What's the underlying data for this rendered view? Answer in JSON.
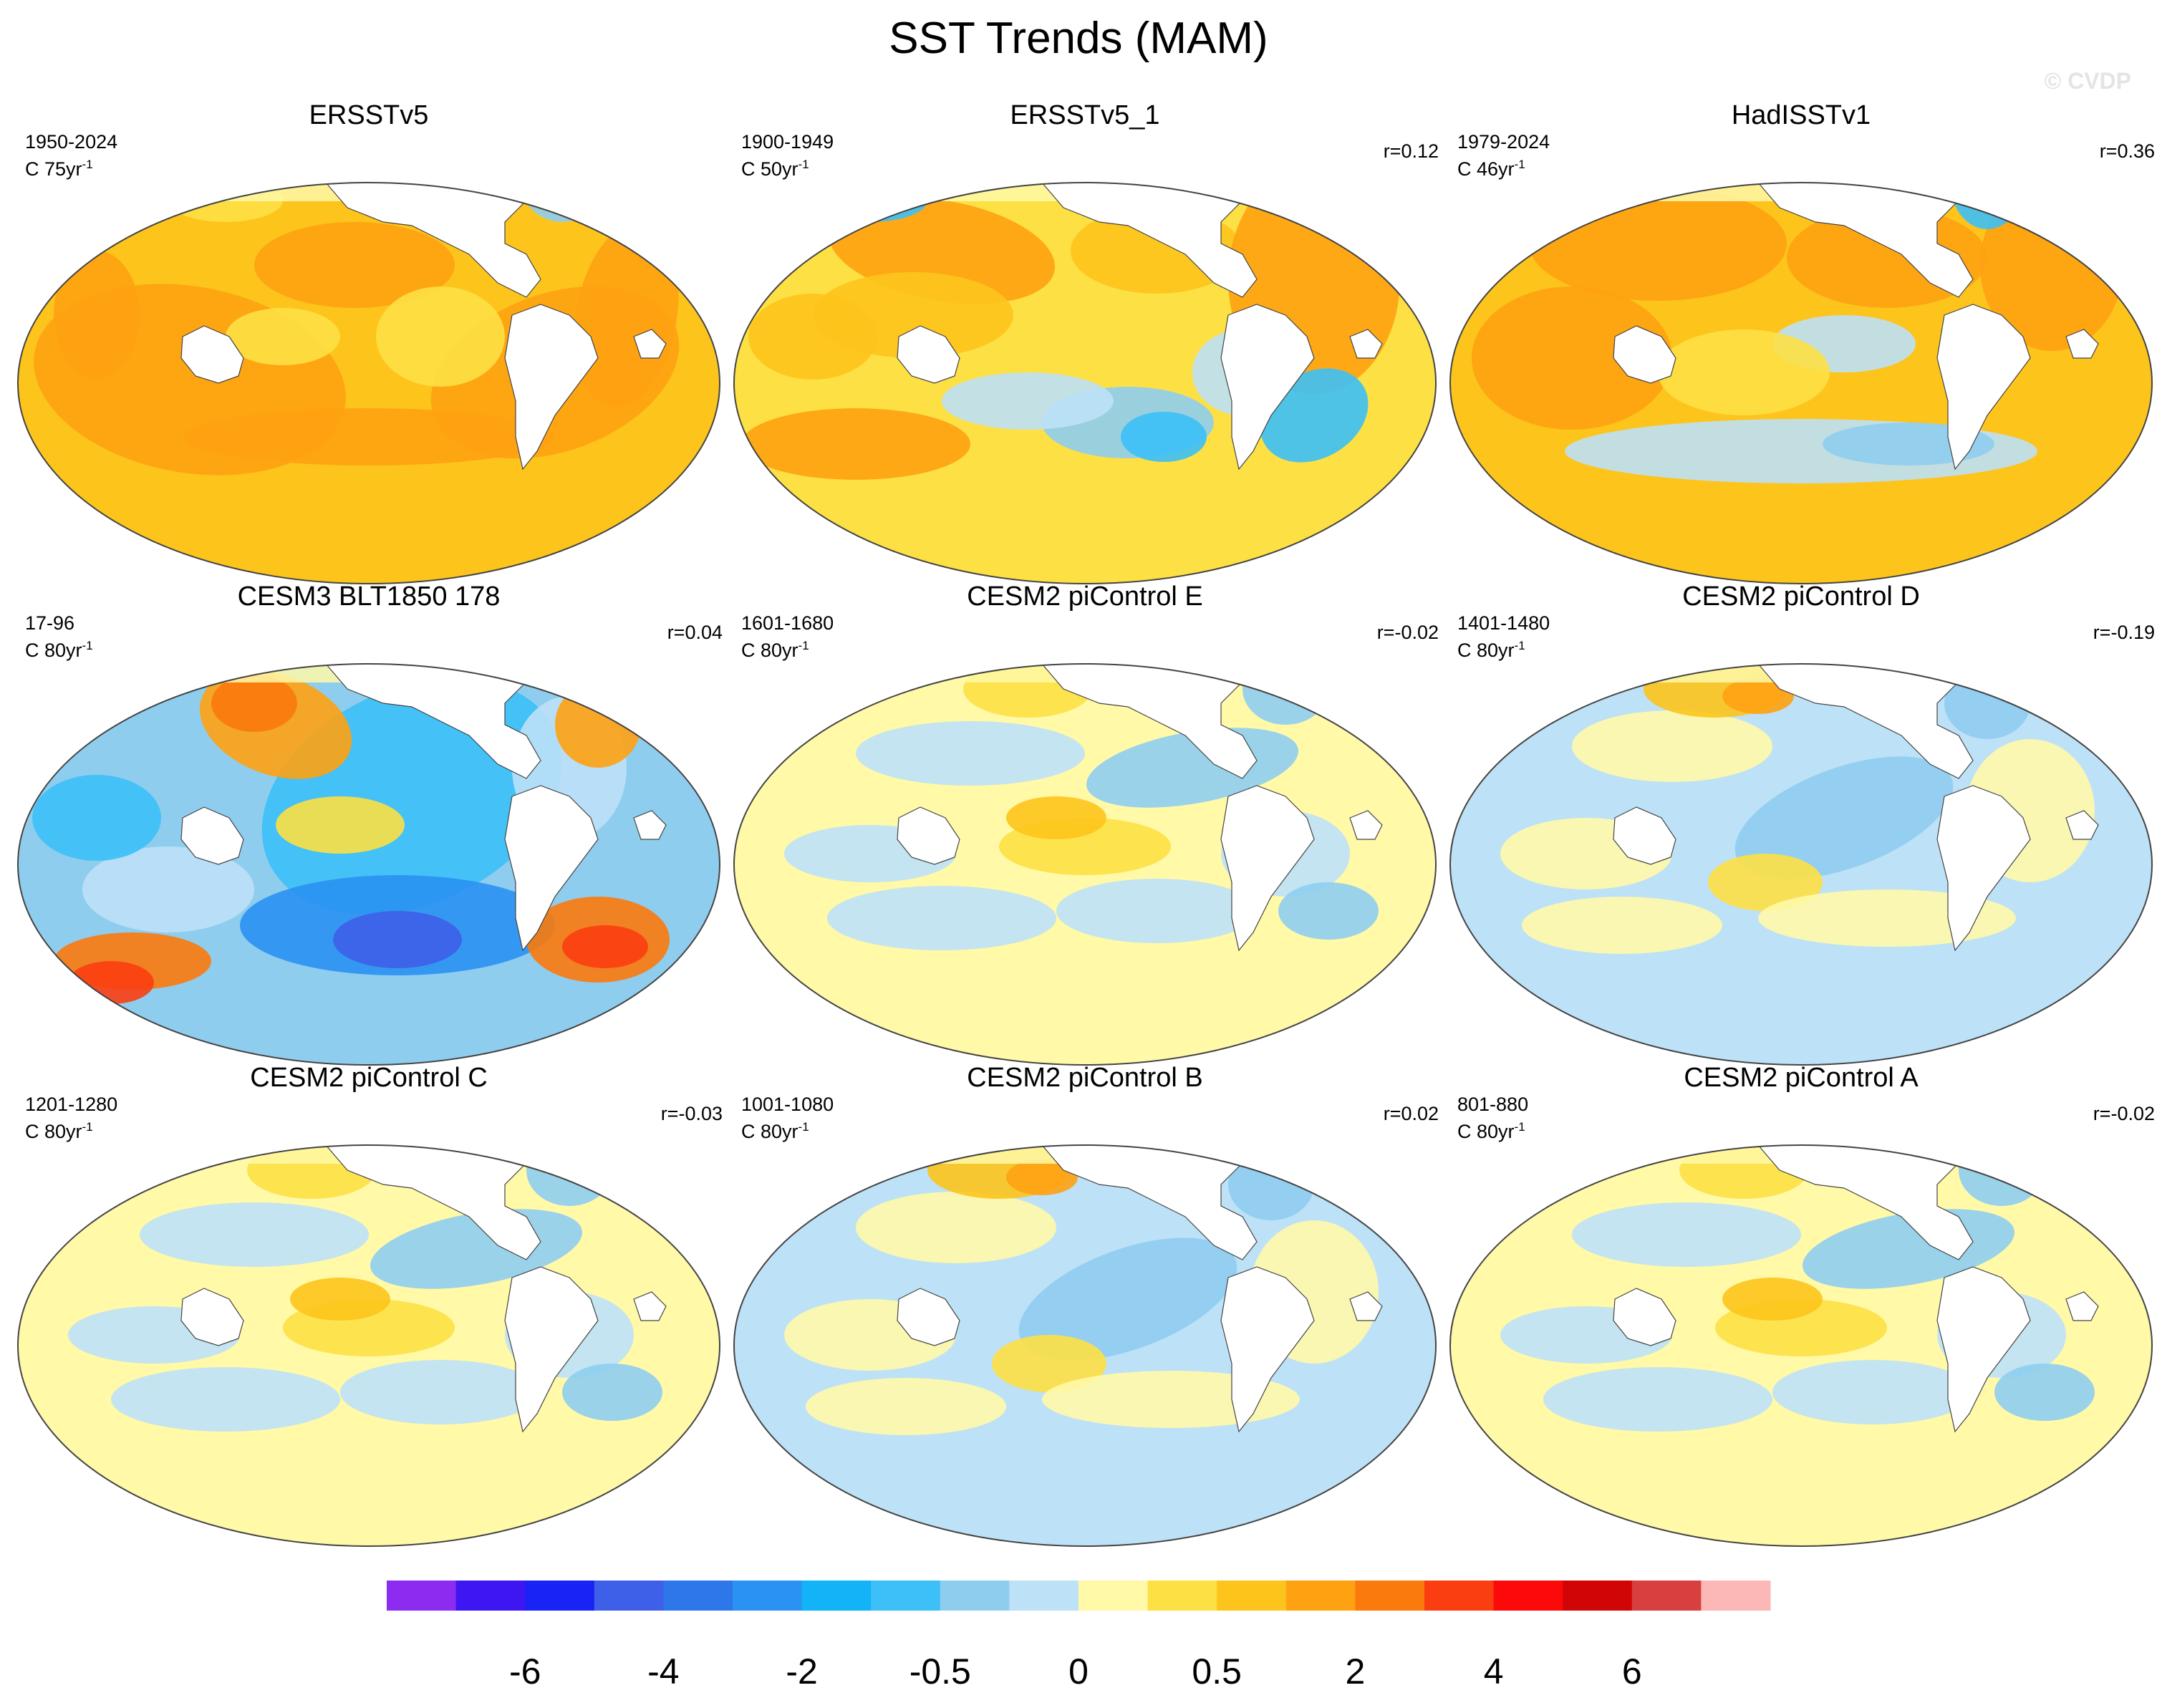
{
  "title": "SST Trends (MAM)",
  "watermark": "© CVDP",
  "panels": [
    {
      "title": "ERSSTv5",
      "period": "1950-2024",
      "units_base": "C 75yr",
      "units_exp": "-1",
      "corr": "",
      "pattern": "warm_strong"
    },
    {
      "title": "ERSSTv5_1",
      "period": "1900-1949",
      "units_base": "C 50yr",
      "units_exp": "-1",
      "corr": "r=0.12",
      "pattern": "warm_mixed"
    },
    {
      "title": "HadISSTv1",
      "period": "1979-2024",
      "units_base": "C 46yr",
      "units_exp": "-1",
      "corr": "r=0.36",
      "pattern": "warm_strong_sthcool"
    },
    {
      "title": "CESM3 BLT1850 178",
      "period": "17-96",
      "units_base": "C 80yr",
      "units_exp": "-1",
      "corr": "r=0.04",
      "pattern": "cool_strong"
    },
    {
      "title": "CESM2 piControl E",
      "period": "1601-1680",
      "units_base": "C 80yr",
      "units_exp": "-1",
      "corr": "r=-0.02",
      "pattern": "mixed"
    },
    {
      "title": "CESM2 piControl D",
      "period": "1401-1480",
      "units_base": "C 80yr",
      "units_exp": "-1",
      "corr": "r=-0.19",
      "pattern": "mixed_cool"
    },
    {
      "title": "CESM2 piControl C",
      "period": "1201-1280",
      "units_base": "C 80yr",
      "units_exp": "-1",
      "corr": "r=-0.03",
      "pattern": "mixed"
    },
    {
      "title": "CESM2 piControl B",
      "period": "1001-1080",
      "units_base": "C 80yr",
      "units_exp": "-1",
      "corr": "r=0.02",
      "pattern": "mixed_cool"
    },
    {
      "title": "CESM2 piControl A",
      "period": "801-880",
      "units_base": "C 80yr",
      "units_exp": "-1",
      "corr": "r=-0.02",
      "pattern": "mixed"
    }
  ],
  "colorbar": {
    "colors": [
      "#8d2bf0",
      "#3e16f2",
      "#1a23f5",
      "#3e5fe8",
      "#2e77ea",
      "#2a92f2",
      "#12b3f7",
      "#3cc0f7",
      "#8fcdef",
      "#bde1f7",
      "#fff9a8",
      "#fde044",
      "#fdc41c",
      "#fea212",
      "#fb7a0c",
      "#fb3e11",
      "#fb0a09",
      "#d10505",
      "#d8403f",
      "#fcb7b7"
    ],
    "labels": [
      {
        "text": "-6",
        "boundary": 2
      },
      {
        "text": "-4",
        "boundary": 4
      },
      {
        "text": "-2",
        "boundary": 6
      },
      {
        "text": "-0.5",
        "boundary": 8
      },
      {
        "text": "0",
        "boundary": 10
      },
      {
        "text": "0.5",
        "boundary": 12
      },
      {
        "text": "2",
        "boundary": 14
      },
      {
        "text": "4",
        "boundary": 16
      },
      {
        "text": "6",
        "boundary": 18
      }
    ]
  }
}
